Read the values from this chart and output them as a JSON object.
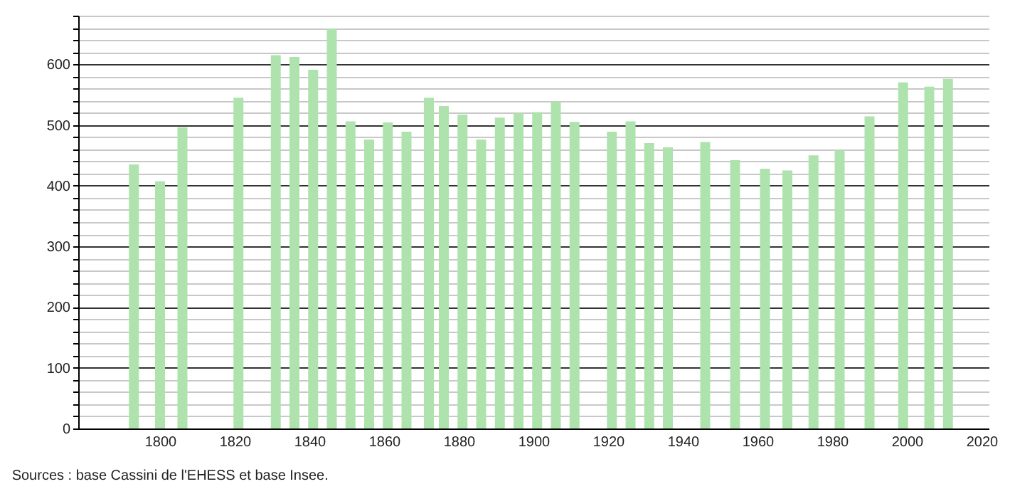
{
  "chart_data": {
    "type": "bar",
    "x": [
      1793,
      1800,
      1806,
      1821,
      1831,
      1836,
      1841,
      1846,
      1851,
      1856,
      1861,
      1866,
      1872,
      1876,
      1881,
      1886,
      1891,
      1896,
      1901,
      1906,
      1911,
      1921,
      1926,
      1931,
      1936,
      1946,
      1954,
      1962,
      1968,
      1975,
      1982,
      1990,
      1999,
      2006,
      2011
    ],
    "values": [
      435,
      407,
      496,
      545,
      615,
      612,
      591,
      659,
      506,
      476,
      504,
      489,
      545,
      531,
      517,
      476,
      512,
      519,
      521,
      538,
      505,
      489,
      506,
      470,
      463,
      472,
      442,
      428,
      425,
      450,
      458,
      514,
      570,
      563,
      576
    ],
    "color": "#aee3ae",
    "xlim": [
      1780,
      2020
    ],
    "xticks": [
      1800,
      1820,
      1840,
      1860,
      1880,
      1900,
      1920,
      1940,
      1960,
      1980,
      2000,
      2020
    ],
    "ylim": [
      0,
      680
    ],
    "yticks": [
      0,
      {
        "value": 20,
        "label": null
      },
      {
        "value": 40,
        "label": null
      },
      {
        "value": 60,
        "label": null
      },
      {
        "value": 80,
        "label": null
      },
      100,
      {
        "value": 120,
        "label": null
      },
      {
        "value": 140,
        "label": null
      },
      {
        "value": 160,
        "label": null
      },
      {
        "value": 180,
        "label": null
      },
      200,
      {
        "value": 220,
        "label": null
      },
      {
        "value": 240,
        "label": null
      },
      {
        "value": 260,
        "label": null
      },
      {
        "value": 280,
        "label": null
      },
      300,
      {
        "value": 320,
        "label": null
      },
      {
        "value": 340,
        "label": null
      },
      {
        "value": 360,
        "label": null
      },
      {
        "value": 380,
        "label": null
      },
      400,
      {
        "value": 420,
        "label": null
      },
      {
        "value": 440,
        "label": null
      },
      {
        "value": 460,
        "label": null
      },
      {
        "value": 480,
        "label": null
      },
      500,
      {
        "value": 520,
        "label": null
      },
      {
        "value": 540,
        "label": null
      },
      {
        "value": 560,
        "label": null
      },
      {
        "value": 580,
        "label": null
      },
      600,
      {
        "value": 620,
        "label": null
      },
      {
        "value": 640,
        "label": null
      },
      {
        "value": 660,
        "label": null
      },
      {
        "value": 680,
        "label": null
      }
    ],
    "grid": "y",
    "annotations": [
      "Sources : base Cassini de l'EHESS et base Insee."
    ]
  }
}
